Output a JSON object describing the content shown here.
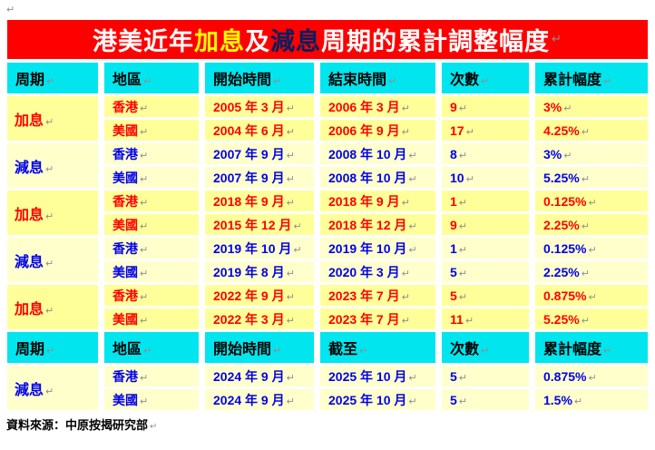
{
  "page": {
    "pilcrow": "↵",
    "source_note": "資料來源：中原按揭研究部"
  },
  "colors": {
    "title_background": "#FF0000",
    "title_text": "#FFFFFF",
    "title_hike_accent": "#FFFF00",
    "title_cut_accent": "#002060",
    "header_background": "#00E5EE",
    "header_text": "#000000",
    "hike_row_background": "#FFFF99",
    "hike_text": "#FF0000",
    "cut_row_background": "#FFFFCC",
    "cut_text": "#0000EE",
    "formatting_mark": "#8F8F8F"
  },
  "title": {
    "segments": [
      {
        "text": "港美近年",
        "color": "#FFFFFF"
      },
      {
        "text": "加息",
        "color": "#FFFF00"
      },
      {
        "text": "及",
        "color": "#FFFFFF"
      },
      {
        "text": "減息",
        "color": "#002060"
      },
      {
        "text": "周期的累計調整幅度",
        "color": "#FFFFFF"
      }
    ]
  },
  "table": {
    "headers1": [
      "周期",
      "地區",
      "開始時間",
      "結束時間",
      "次數",
      "累計幅度"
    ],
    "headers2": [
      "周期",
      "地區",
      "開始時間",
      "截至",
      "次數",
      "累計幅度"
    ],
    "groups": [
      {
        "cycle": "加息",
        "variant": "hike",
        "rows": [
          [
            "香港",
            "2005 年 3 月",
            "2006 年 3 月",
            "9",
            "3%"
          ],
          [
            "美國",
            "2004 年 6 月",
            "2006 年 9 月",
            "17",
            "4.25%"
          ]
        ]
      },
      {
        "cycle": "減息",
        "variant": "cut",
        "rows": [
          [
            "香港",
            "2007 年 9 月",
            "2008 年 10 月",
            "8",
            "3%"
          ],
          [
            "美國",
            "2007 年 9 月",
            "2008 年 10 月",
            "10",
            "5.25%"
          ]
        ]
      },
      {
        "cycle": "加息",
        "variant": "hike",
        "rows": [
          [
            "香港",
            "2018 年 9 月",
            "2018 年 9 月",
            "1",
            "0.125%"
          ],
          [
            "美國",
            "2015 年 12 月",
            "2018 年 12 月",
            "9",
            "2.25%"
          ]
        ]
      },
      {
        "cycle": "減息",
        "variant": "cut",
        "rows": [
          [
            "香港",
            "2019 年 10 月",
            "2019 年 10 月",
            "1",
            "0.125%"
          ],
          [
            "美國",
            "2019 年 8 月",
            "2020 年 3 月",
            "5",
            "2.25%"
          ]
        ]
      },
      {
        "cycle": "加息",
        "variant": "hike",
        "rows": [
          [
            "香港",
            "2022 年 9 月",
            "2023 年 7 月",
            "5",
            "0.875%"
          ],
          [
            "美國",
            "2022 年 3 月",
            "2023 年 7 月",
            "11",
            "5.25%"
          ]
        ]
      }
    ],
    "groups2": [
      {
        "cycle": "減息",
        "variant": "cut",
        "rows": [
          [
            "香港",
            "2024 年 9 月",
            "2025 年 10 月",
            "5",
            "0.875%"
          ],
          [
            "美國",
            "2024 年 9 月",
            "2025 年 10 月",
            "5",
            "1.5%"
          ]
        ]
      }
    ]
  }
}
